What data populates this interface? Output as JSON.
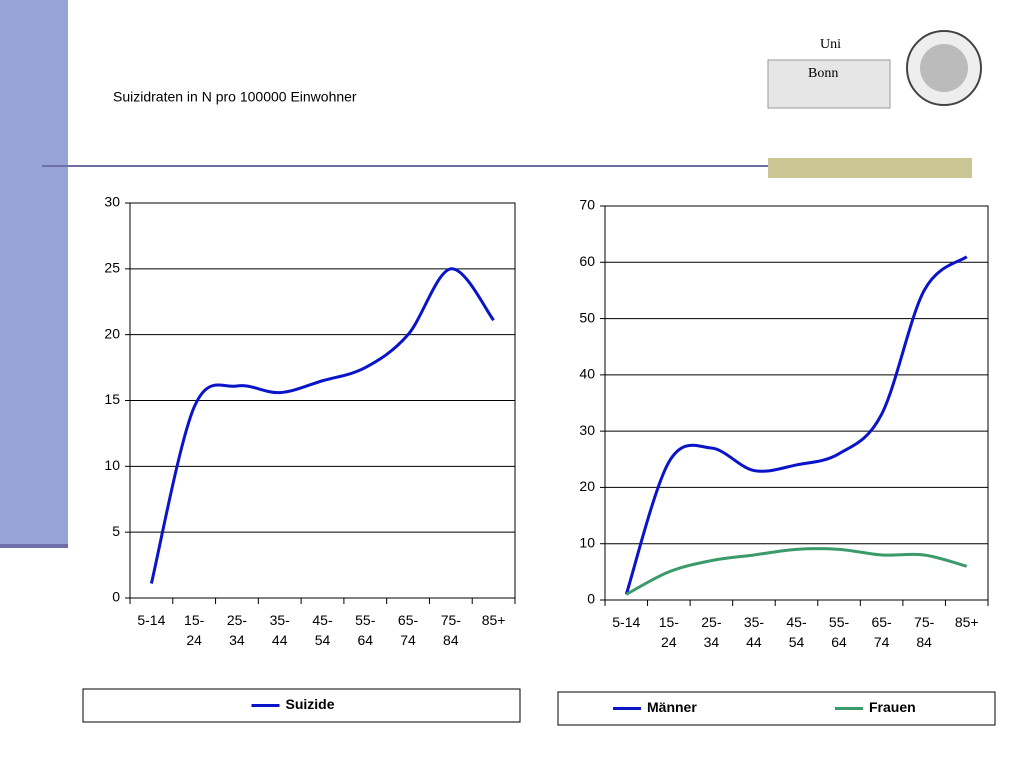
{
  "header": {
    "title": "Suizidraten in N pro 100000 Einwohner",
    "logo_line1": "Uni",
    "logo_line2": "Bonn"
  },
  "chart_data": [
    {
      "type": "line",
      "categories": [
        "5-14",
        "15-24",
        "25-34",
        "35-44",
        "45-54",
        "55-64",
        "65-74",
        "75-84",
        "85+"
      ],
      "series": [
        {
          "name": "Suizide",
          "color": "#0a14c8",
          "values": [
            1.1,
            14.5,
            16.1,
            15.6,
            16.5,
            17.5,
            20,
            25,
            21.1
          ]
        }
      ],
      "ylim": [
        0,
        30
      ],
      "yticks": [
        0,
        5,
        10,
        15,
        20,
        25,
        30
      ],
      "grid": true,
      "legend": "bottom"
    },
    {
      "type": "line",
      "categories": [
        "5-14",
        "15-24",
        "25-34",
        "35-44",
        "45-54",
        "55-64",
        "65-74",
        "75-84",
        "85+"
      ],
      "series": [
        {
          "name": "Männer",
          "color": "#0a14c8",
          "values": [
            1,
            24.5,
            27,
            23,
            24,
            26,
            33,
            55,
            61
          ]
        },
        {
          "name": "Frauen",
          "color": "#3a9a6a",
          "values": [
            1,
            5,
            7,
            8,
            9,
            9,
            8,
            8,
            6
          ]
        }
      ],
      "ylim": [
        0,
        70
      ],
      "yticks": [
        0,
        10,
        20,
        30,
        40,
        50,
        60,
        70
      ],
      "grid": true,
      "legend": "bottom"
    }
  ]
}
